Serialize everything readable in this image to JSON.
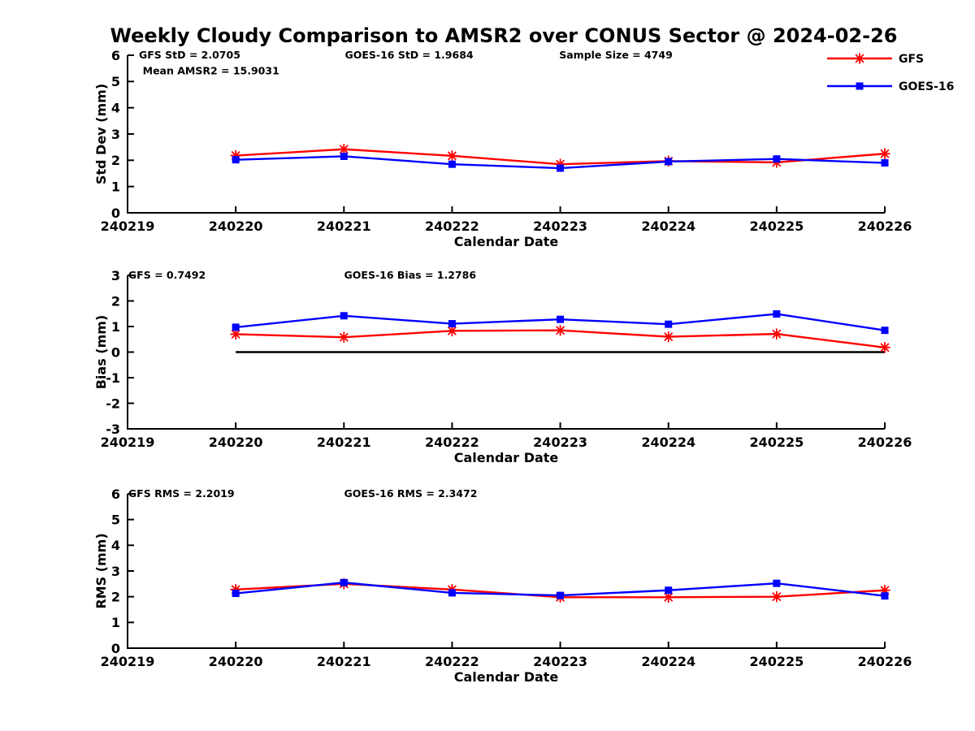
{
  "title": "Weekly Cloudy Comparison to AMSR2 over CONUS Sector @ 2024-02-26",
  "legend": {
    "position": "top-right",
    "items": [
      {
        "label": "GFS",
        "color": "#ff0000",
        "marker": "asterisk"
      },
      {
        "label": "GOES-16",
        "color": "#0000ff",
        "marker": "square"
      }
    ]
  },
  "chart_data": [
    {
      "type": "line",
      "id": "std-dev",
      "ylabel": "Std Dev (mm)",
      "xlabel": "Calendar Date",
      "ylim": [
        0,
        6
      ],
      "yticks": [
        0,
        1,
        2,
        3,
        4,
        5,
        6
      ],
      "xticklabels": [
        "240219",
        "240220",
        "240221",
        "240222",
        "240223",
        "240224",
        "240225",
        "240226"
      ],
      "x": [
        "240220",
        "240221",
        "240222",
        "240223",
        "240224",
        "240225",
        "240226"
      ],
      "grid": false,
      "zero_line": false,
      "annotations": [
        {
          "text": "GFS StD = 2.0705",
          "fx": 0.015,
          "row": 0
        },
        {
          "text": "GOES-16 StD = 1.9684",
          "fx": 0.287,
          "row": 0
        },
        {
          "text": "Sample Size = 4749",
          "fx": 0.57,
          "row": 0
        },
        {
          "text": "Mean AMSR2 = 15.9031",
          "fx": 0.02,
          "row": 1
        }
      ],
      "series": [
        {
          "name": "GFS",
          "color": "#ff0000",
          "marker": "asterisk",
          "values": [
            2.18,
            2.42,
            2.17,
            1.85,
            1.97,
            1.92,
            2.25
          ]
        },
        {
          "name": "GOES-16",
          "color": "#0000ff",
          "marker": "square",
          "values": [
            2.02,
            2.15,
            1.85,
            1.7,
            1.95,
            2.05,
            1.9
          ]
        }
      ]
    },
    {
      "type": "line",
      "id": "bias",
      "ylabel": "Bias (mm)",
      "xlabel": "Calendar Date",
      "ylim": [
        -3,
        3
      ],
      "yticks": [
        -3,
        -2,
        -1,
        0,
        1,
        2,
        3
      ],
      "xticklabels": [
        "240219",
        "240220",
        "240221",
        "240222",
        "240223",
        "240224",
        "240225",
        "240226"
      ],
      "x": [
        "240220",
        "240221",
        "240222",
        "240223",
        "240224",
        "240225",
        "240226"
      ],
      "grid": false,
      "zero_line": true,
      "annotations": [
        {
          "text": "GFS = 0.7492",
          "fx": 0.001,
          "row": 0
        },
        {
          "text": "GOES-16 Bias  = 1.2786",
          "fx": 0.286,
          "row": 0
        }
      ],
      "series": [
        {
          "name": "GFS",
          "color": "#ff0000",
          "marker": "asterisk",
          "values": [
            0.7,
            0.58,
            0.83,
            0.85,
            0.6,
            0.71,
            0.18
          ]
        },
        {
          "name": "GOES-16",
          "color": "#0000ff",
          "marker": "square",
          "values": [
            0.97,
            1.42,
            1.11,
            1.28,
            1.09,
            1.49,
            0.85
          ]
        }
      ]
    },
    {
      "type": "line",
      "id": "rms",
      "ylabel": "RMS (mm)",
      "xlabel": "Calendar Date",
      "ylim": [
        0,
        6
      ],
      "yticks": [
        0,
        1,
        2,
        3,
        4,
        5,
        6
      ],
      "xticklabels": [
        "240219",
        "240220",
        "240221",
        "240222",
        "240223",
        "240224",
        "240225",
        "240226"
      ],
      "x": [
        "240220",
        "240221",
        "240222",
        "240223",
        "240224",
        "240225",
        "240226"
      ],
      "grid": false,
      "zero_line": false,
      "annotations": [
        {
          "text": "GFS RMS = 2.2019",
          "fx": 0.001,
          "row": 0
        },
        {
          "text": "GOES-16 RMS = 2.3472",
          "fx": 0.286,
          "row": 0
        }
      ],
      "series": [
        {
          "name": "GFS",
          "color": "#ff0000",
          "marker": "asterisk",
          "values": [
            2.28,
            2.5,
            2.28,
            1.98,
            1.98,
            2.0,
            2.25
          ]
        },
        {
          "name": "GOES-16",
          "color": "#0000ff",
          "marker": "square",
          "values": [
            2.13,
            2.55,
            2.15,
            2.05,
            2.25,
            2.52,
            2.03
          ]
        }
      ]
    }
  ]
}
